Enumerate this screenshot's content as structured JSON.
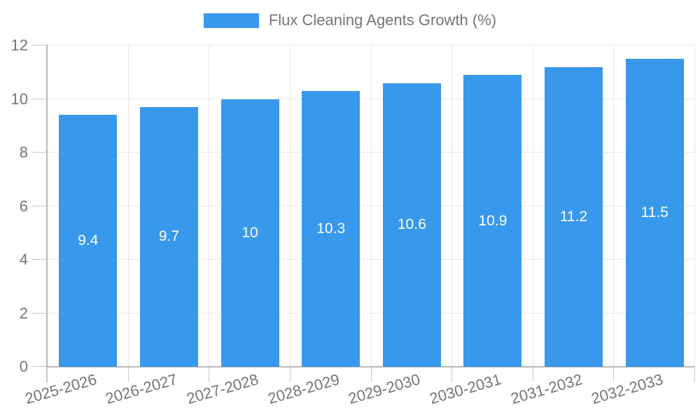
{
  "chart_data": {
    "type": "bar",
    "title": "Flux Cleaning Agents Growth (%)",
    "legend_entries": [
      "Flux Cleaning Agents Growth (%)"
    ],
    "legend_position": "top-center",
    "categories": [
      "2025-2026",
      "2026-2027",
      "2027-2028",
      "2028-2029",
      "2029-2030",
      "2030-2031",
      "2031-2032",
      "2032-2033"
    ],
    "values": [
      9.4,
      9.7,
      10,
      10.3,
      10.6,
      10.9,
      11.2,
      11.5
    ],
    "bar_labels": [
      "9.4",
      "9.7",
      "10",
      "10.3",
      "10.6",
      "10.9",
      "11.2",
      "11.5"
    ],
    "xlabel": "",
    "ylabel": "",
    "ylim": [
      0,
      12
    ],
    "y_ticks": [
      0,
      2,
      4,
      6,
      8,
      10,
      12
    ],
    "y_tick_labels": [
      "0",
      "2",
      "4",
      "6",
      "8",
      "10",
      "12"
    ],
    "grid": true,
    "colors": {
      "bar": "#3898ec",
      "bar_label_text": "#ffffff",
      "axis_text": "#757575",
      "grid_line": "#e8e8e8",
      "axis_line": "#b9b9b9",
      "tick_line": "#c9c9c9",
      "background": "#ffffff"
    }
  }
}
